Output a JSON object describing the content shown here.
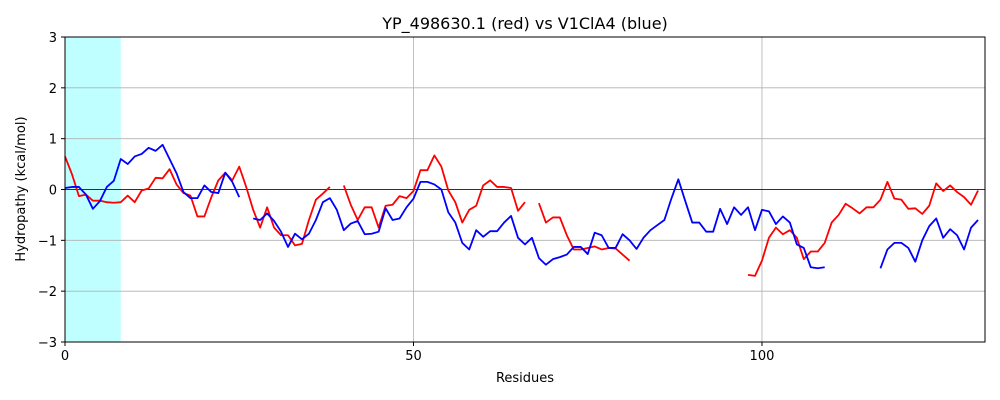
{
  "chart_data": {
    "type": "line",
    "title": "YP_498630.1 (red) vs V1ClA4 (blue)",
    "xlabel": "Residues",
    "ylabel": "Hydropathy (kcal/mol)",
    "xlim": [
      0,
      132
    ],
    "ylim": [
      -3,
      3
    ],
    "xticks": [
      0,
      50,
      100
    ],
    "yticks": [
      -3,
      -2,
      -1,
      0,
      1,
      2,
      3
    ],
    "grid": true,
    "zero_line": true,
    "highlight_region": {
      "x": [
        0,
        8
      ],
      "color": "#c0ffff"
    },
    "series": [
      {
        "color": "#ff0000",
        "segments": [
          [
            [
              0,
              0.65
            ],
            [
              1,
              0.3
            ],
            [
              2,
              -0.13
            ],
            [
              3,
              -0.1
            ],
            [
              4,
              -0.22
            ],
            [
              5,
              -0.22
            ],
            [
              6,
              -0.25
            ],
            [
              7,
              -0.26
            ],
            [
              8,
              -0.25
            ],
            [
              9,
              -0.12
            ],
            [
              10,
              -0.25
            ],
            [
              11,
              -0.02
            ],
            [
              12,
              0.02
            ],
            [
              13,
              0.23
            ],
            [
              14,
              0.22
            ],
            [
              15,
              0.4
            ],
            [
              16,
              0.1
            ],
            [
              17,
              -0.07
            ],
            [
              18,
              -0.12
            ],
            [
              19,
              -0.53
            ],
            [
              20,
              -0.53
            ],
            [
              21,
              -0.15
            ],
            [
              22,
              0.18
            ],
            [
              23,
              0.33
            ],
            [
              24,
              0.18
            ],
            [
              25,
              0.45
            ],
            [
              26,
              0.05
            ],
            [
              27,
              -0.4
            ],
            [
              28,
              -0.75
            ],
            [
              29,
              -0.35
            ],
            [
              30,
              -0.75
            ],
            [
              31,
              -0.9
            ],
            [
              32,
              -0.9
            ],
            [
              33,
              -1.1
            ],
            [
              34,
              -1.07
            ],
            [
              35,
              -0.6
            ],
            [
              36,
              -0.2
            ],
            [
              37,
              -0.08
            ],
            [
              38,
              0.05
            ]
          ],
          [
            [
              40,
              0.08
            ],
            [
              41,
              -0.3
            ],
            [
              42,
              -0.6
            ],
            [
              43,
              -0.35
            ],
            [
              44,
              -0.35
            ],
            [
              45,
              -0.75
            ],
            [
              46,
              -0.32
            ],
            [
              47,
              -0.3
            ],
            [
              48,
              -0.13
            ],
            [
              49,
              -0.17
            ],
            [
              50,
              -0.03
            ],
            [
              51,
              0.38
            ],
            [
              52,
              0.38
            ],
            [
              53,
              0.67
            ],
            [
              54,
              0.45
            ],
            [
              55,
              -0.02
            ],
            [
              56,
              -0.25
            ],
            [
              57,
              -0.65
            ],
            [
              58,
              -0.4
            ],
            [
              59,
              -0.32
            ],
            [
              60,
              0.08
            ],
            [
              61,
              0.18
            ],
            [
              62,
              0.05
            ],
            [
              63,
              0.05
            ],
            [
              64,
              0.03
            ],
            [
              65,
              -0.42
            ],
            [
              66,
              -0.25
            ]
          ],
          [
            [
              68,
              -0.27
            ],
            [
              69,
              -0.65
            ],
            [
              70,
              -0.55
            ],
            [
              71,
              -0.55
            ],
            [
              72,
              -0.9
            ],
            [
              73,
              -1.18
            ],
            [
              74,
              -1.18
            ],
            [
              75,
              -1.15
            ],
            [
              76,
              -1.12
            ],
            [
              77,
              -1.18
            ],
            [
              78,
              -1.15
            ],
            [
              79,
              -1.16
            ],
            [
              80,
              -1.28
            ],
            [
              81,
              -1.4
            ]
          ],
          [
            [
              98,
              -1.68
            ],
            [
              99,
              -1.7
            ],
            [
              100,
              -1.4
            ],
            [
              101,
              -0.95
            ],
            [
              102,
              -0.75
            ],
            [
              103,
              -0.88
            ],
            [
              104,
              -0.8
            ],
            [
              105,
              -0.95
            ],
            [
              106,
              -1.37
            ],
            [
              107,
              -1.22
            ],
            [
              108,
              -1.22
            ],
            [
              109,
              -1.05
            ],
            [
              110,
              -0.65
            ],
            [
              111,
              -0.5
            ],
            [
              112,
              -0.28
            ],
            [
              113,
              -0.37
            ],
            [
              114,
              -0.47
            ],
            [
              115,
              -0.35
            ],
            [
              116,
              -0.35
            ],
            [
              117,
              -0.2
            ],
            [
              118,
              0.15
            ],
            [
              119,
              -0.18
            ],
            [
              120,
              -0.2
            ],
            [
              121,
              -0.38
            ],
            [
              122,
              -0.37
            ],
            [
              123,
              -0.48
            ],
            [
              124,
              -0.32
            ],
            [
              125,
              0.12
            ],
            [
              126,
              -0.03
            ],
            [
              127,
              0.08
            ],
            [
              128,
              -0.05
            ],
            [
              129,
              -0.15
            ],
            [
              130,
              -0.3
            ],
            [
              131,
              -0.02
            ]
          ]
        ]
      },
      {
        "color": "#0000ff",
        "segments": [
          [
            [
              0,
              0.03
            ],
            [
              1,
              0.05
            ],
            [
              2,
              0.05
            ],
            [
              3,
              -0.1
            ],
            [
              4,
              -0.38
            ],
            [
              5,
              -0.23
            ],
            [
              6,
              0.05
            ],
            [
              7,
              0.17
            ],
            [
              8,
              0.6
            ],
            [
              9,
              0.5
            ],
            [
              10,
              0.65
            ],
            [
              11,
              0.7
            ],
            [
              12,
              0.82
            ],
            [
              13,
              0.76
            ],
            [
              14,
              0.88
            ],
            [
              15,
              0.6
            ],
            [
              16,
              0.32
            ],
            [
              17,
              -0.05
            ],
            [
              18,
              -0.17
            ],
            [
              19,
              -0.17
            ],
            [
              20,
              0.08
            ],
            [
              21,
              -0.05
            ],
            [
              22,
              -0.07
            ],
            [
              23,
              0.33
            ],
            [
              24,
              0.15
            ],
            [
              25,
              -0.15
            ]
          ],
          [
            [
              27,
              -0.57
            ],
            [
              28,
              -0.6
            ],
            [
              29,
              -0.47
            ],
            [
              30,
              -0.62
            ],
            [
              31,
              -0.83
            ],
            [
              32,
              -1.13
            ],
            [
              33,
              -0.87
            ],
            [
              34,
              -0.98
            ],
            [
              35,
              -0.87
            ],
            [
              36,
              -0.6
            ],
            [
              37,
              -0.25
            ],
            [
              38,
              -0.17
            ],
            [
              39,
              -0.4
            ],
            [
              40,
              -0.8
            ],
            [
              41,
              -0.67
            ],
            [
              42,
              -0.62
            ],
            [
              43,
              -0.88
            ],
            [
              44,
              -0.87
            ],
            [
              45,
              -0.83
            ],
            [
              46,
              -0.37
            ],
            [
              47,
              -0.6
            ],
            [
              48,
              -0.57
            ],
            [
              49,
              -0.35
            ],
            [
              50,
              -0.18
            ],
            [
              51,
              0.15
            ],
            [
              52,
              0.15
            ],
            [
              53,
              0.1
            ],
            [
              54,
              0.0
            ],
            [
              55,
              -0.45
            ],
            [
              56,
              -0.65
            ],
            [
              57,
              -1.05
            ],
            [
              58,
              -1.18
            ],
            [
              59,
              -0.8
            ],
            [
              60,
              -0.93
            ],
            [
              61,
              -0.82
            ],
            [
              62,
              -0.82
            ],
            [
              63,
              -0.65
            ],
            [
              64,
              -0.52
            ],
            [
              65,
              -0.95
            ],
            [
              66,
              -1.08
            ],
            [
              67,
              -0.95
            ],
            [
              68,
              -1.35
            ],
            [
              69,
              -1.48
            ],
            [
              70,
              -1.37
            ],
            [
              71,
              -1.33
            ],
            [
              72,
              -1.28
            ],
            [
              73,
              -1.13
            ],
            [
              74,
              -1.13
            ],
            [
              75,
              -1.27
            ],
            [
              76,
              -0.85
            ],
            [
              77,
              -0.9
            ],
            [
              78,
              -1.15
            ],
            [
              79,
              -1.15
            ],
            [
              80,
              -0.88
            ],
            [
              81,
              -1.0
            ],
            [
              82,
              -1.17
            ],
            [
              83,
              -0.95
            ],
            [
              84,
              -0.8
            ],
            [
              85,
              -0.7
            ],
            [
              86,
              -0.6
            ],
            [
              87,
              -0.18
            ],
            [
              88,
              0.2
            ],
            [
              89,
              -0.23
            ],
            [
              90,
              -0.65
            ],
            [
              91,
              -0.65
            ],
            [
              92,
              -0.83
            ],
            [
              93,
              -0.83
            ],
            [
              94,
              -0.38
            ],
            [
              95,
              -0.68
            ],
            [
              96,
              -0.35
            ],
            [
              97,
              -0.5
            ],
            [
              98,
              -0.35
            ],
            [
              99,
              -0.8
            ],
            [
              100,
              -0.4
            ],
            [
              101,
              -0.43
            ],
            [
              102,
              -0.68
            ],
            [
              103,
              -0.53
            ],
            [
              104,
              -0.65
            ],
            [
              105,
              -1.08
            ],
            [
              106,
              -1.15
            ],
            [
              107,
              -1.53
            ],
            [
              108,
              -1.55
            ],
            [
              109,
              -1.53
            ]
          ],
          [
            [
              117,
              -1.55
            ],
            [
              118,
              -1.18
            ],
            [
              119,
              -1.05
            ],
            [
              120,
              -1.05
            ],
            [
              121,
              -1.15
            ],
            [
              122,
              -1.42
            ],
            [
              123,
              -1.0
            ],
            [
              124,
              -0.72
            ],
            [
              125,
              -0.57
            ],
            [
              126,
              -0.95
            ],
            [
              127,
              -0.78
            ],
            [
              128,
              -0.9
            ],
            [
              129,
              -1.18
            ],
            [
              130,
              -0.75
            ],
            [
              131,
              -0.6
            ]
          ]
        ]
      }
    ]
  }
}
